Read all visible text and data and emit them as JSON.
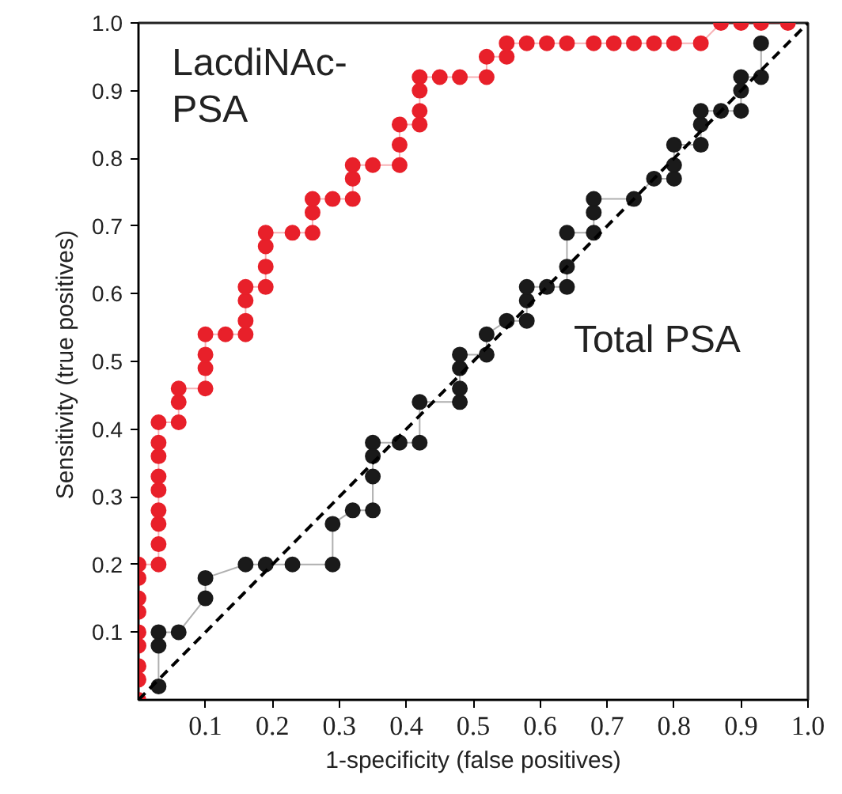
{
  "chart_data": {
    "type": "line",
    "xlabel": "1-specificity (false positives)",
    "ylabel": "Sensitivity  (true positives)",
    "xlim": [
      0,
      1
    ],
    "ylim": [
      0,
      1
    ],
    "xticks": [
      0.1,
      0.2,
      0.3,
      0.4,
      0.5,
      0.6,
      0.7,
      0.8,
      0.9,
      {
        "value": 1,
        "label": "1.0"
      }
    ],
    "yticks": [
      0.1,
      0.2,
      0.3,
      0.4,
      0.5,
      0.6,
      0.7,
      0.8,
      0.9,
      {
        "value": 1,
        "label": "1.0"
      }
    ],
    "grid": false,
    "marker": "circle",
    "line_style": "solid",
    "series": [
      {
        "name": "LacdiNAc-\nPSA",
        "color": "#e8202a",
        "x": [
          0,
          0,
          0,
          0,
          0,
          0,
          0,
          0,
          0,
          0.03,
          0.03,
          0.03,
          0.03,
          0.03,
          0.03,
          0.03,
          0.03,
          0.03,
          0.06,
          0.06,
          0.06,
          0.1,
          0.1,
          0.1,
          0.1,
          0.13,
          0.16,
          0.16,
          0.16,
          0.16,
          0.19,
          0.19,
          0.19,
          0.19,
          0.23,
          0.26,
          0.26,
          0.26,
          0.29,
          0.32,
          0.32,
          0.32,
          0.35,
          0.39,
          0.39,
          0.39,
          0.42,
          0.42,
          0.42,
          0.42,
          0.45,
          0.48,
          0.52,
          0.52,
          0.55,
          0.55,
          0.58,
          0.61,
          0.64,
          0.68,
          0.71,
          0.74,
          0.77,
          0.8,
          0.84,
          0.87,
          0.9,
          0.93,
          0.97
        ],
        "values": [
          0,
          0.03,
          0.05,
          0.08,
          0.1,
          0.13,
          0.15,
          0.18,
          0.2,
          0.2,
          0.23,
          0.26,
          0.28,
          0.31,
          0.33,
          0.36,
          0.38,
          0.41,
          0.41,
          0.44,
          0.46,
          0.46,
          0.49,
          0.51,
          0.54,
          0.54,
          0.54,
          0.56,
          0.59,
          0.61,
          0.61,
          0.64,
          0.67,
          0.69,
          0.69,
          0.69,
          0.72,
          0.74,
          0.74,
          0.74,
          0.77,
          0.79,
          0.79,
          0.79,
          0.82,
          0.85,
          0.85,
          0.87,
          0.9,
          0.92,
          0.92,
          0.92,
          0.92,
          0.95,
          0.95,
          0.97,
          0.97,
          0.97,
          0.97,
          0.97,
          0.97,
          0.97,
          0.97,
          0.97,
          0.97,
          1,
          1,
          1,
          1
        ]
      },
      {
        "name": "Total PSA",
        "color": "#1a1a1a",
        "x": [
          0.03,
          0.03,
          0.03,
          0.06,
          0.1,
          0.1,
          0.16,
          0.19,
          0.23,
          0.29,
          0.29,
          0.32,
          0.35,
          0.35,
          0.35,
          0.35,
          0.39,
          0.42,
          0.42,
          0.48,
          0.48,
          0.48,
          0.48,
          0.52,
          0.52,
          0.55,
          0.58,
          0.58,
          0.58,
          0.61,
          0.64,
          0.64,
          0.64,
          0.68,
          0.68,
          0.68,
          0.74,
          0.77,
          0.8,
          0.8,
          0.8,
          0.84,
          0.84,
          0.84,
          0.87,
          0.9,
          0.9,
          0.9,
          0.93,
          0.93
        ],
        "values": [
          0.02,
          0.08,
          0.1,
          0.1,
          0.15,
          0.18,
          0.2,
          0.2,
          0.2,
          0.2,
          0.26,
          0.28,
          0.28,
          0.33,
          0.36,
          0.38,
          0.38,
          0.38,
          0.44,
          0.44,
          0.46,
          0.49,
          0.51,
          0.51,
          0.54,
          0.56,
          0.56,
          0.59,
          0.61,
          0.61,
          0.61,
          0.64,
          0.69,
          0.69,
          0.72,
          0.74,
          0.74,
          0.77,
          0.77,
          0.79,
          0.82,
          0.82,
          0.85,
          0.87,
          0.87,
          0.87,
          0.9,
          0.92,
          0.92,
          0.97
        ]
      },
      {
        "type": "line",
        "color": "#000000",
        "line_style": "dashed",
        "marker": "none",
        "x": [
          0,
          1
        ],
        "values": [
          0,
          1
        ]
      }
    ]
  }
}
